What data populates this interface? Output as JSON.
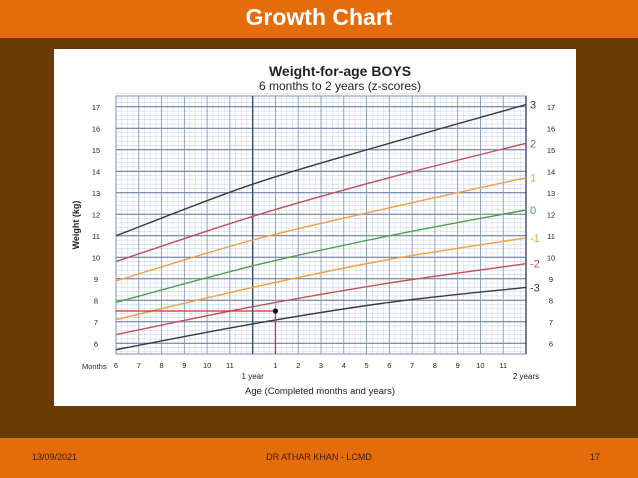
{
  "slide": {
    "title": "Growth Chart",
    "footer_date": "13/09/2021",
    "footer_author": "DR ATHAR KHAN - LCMD",
    "footer_page": "17"
  },
  "colors": {
    "title_bar": "#e46c0a",
    "background": "#6a3a04",
    "grid_line": "#8fa6cc",
    "marker_line": "#e8242a"
  },
  "chart_data": {
    "type": "line",
    "title": "Weight-for-age  BOYS",
    "subtitle": "6 months to 2 years (z-scores)",
    "xlabel": "Age (Completed months and years)",
    "ylabel": "Weight (kg)",
    "x_unit_label": "Months",
    "x_ticks": [
      {
        "age": 6,
        "label": "6"
      },
      {
        "age": 7,
        "label": "7"
      },
      {
        "age": 8,
        "label": "8"
      },
      {
        "age": 9,
        "label": "9"
      },
      {
        "age": 10,
        "label": "10"
      },
      {
        "age": 11,
        "label": "11"
      },
      {
        "age": 12,
        "label": ""
      },
      {
        "age": 13,
        "label": "1"
      },
      {
        "age": 14,
        "label": "2"
      },
      {
        "age": 15,
        "label": "3"
      },
      {
        "age": 16,
        "label": "4"
      },
      {
        "age": 17,
        "label": "5"
      },
      {
        "age": 18,
        "label": "6"
      },
      {
        "age": 19,
        "label": "7"
      },
      {
        "age": 20,
        "label": "8"
      },
      {
        "age": 21,
        "label": "9"
      },
      {
        "age": 22,
        "label": "10"
      },
      {
        "age": 23,
        "label": "11"
      },
      {
        "age": 24,
        "label": ""
      }
    ],
    "year_labels": [
      {
        "age": 12,
        "label": "1 year"
      },
      {
        "age": 24,
        "label": "2 years"
      }
    ],
    "xlim": [
      6,
      24
    ],
    "ylim": [
      5.5,
      17.5
    ],
    "y_ticks": [
      6,
      7,
      8,
      9,
      10,
      11,
      12,
      13,
      14,
      15,
      16,
      17
    ],
    "grid": true,
    "x": [
      6,
      12,
      18,
      24
    ],
    "series": [
      {
        "name": "3",
        "color": "#3a3a3a",
        "values": [
          11.0,
          13.4,
          15.3,
          17.1
        ]
      },
      {
        "name": "2",
        "color": "#c0505a",
        "values": [
          9.8,
          11.9,
          13.7,
          15.3
        ]
      },
      {
        "name": "1",
        "color": "#f0a040",
        "values": [
          8.9,
          10.8,
          12.3,
          13.7
        ]
      },
      {
        "name": "0",
        "color": "#4ea04e",
        "values": [
          7.9,
          9.6,
          11.0,
          12.2
        ]
      },
      {
        "name": "-1",
        "color": "#f0a040",
        "values": [
          7.1,
          8.6,
          9.9,
          10.9
        ]
      },
      {
        "name": "-2",
        "color": "#c0505a",
        "values": [
          6.4,
          7.7,
          8.8,
          9.7
        ]
      },
      {
        "name": "-3",
        "color": "#3a3a3a",
        "values": [
          5.7,
          6.9,
          7.9,
          8.6
        ]
      }
    ],
    "marker": {
      "age": 13,
      "weight": 7.5
    }
  }
}
